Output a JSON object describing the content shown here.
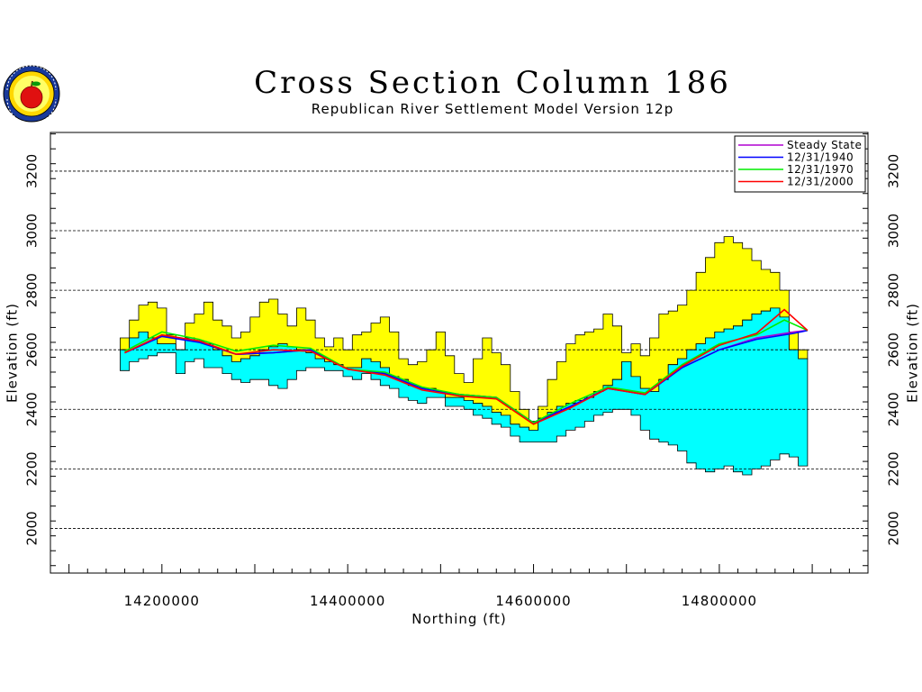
{
  "header": {
    "title": "Cross Section Column 186",
    "subtitle": "Republican River Settlement Model Version 12p"
  },
  "chart_data": {
    "type": "area",
    "title": "Cross Section Column 186",
    "subtitle": "Republican River Settlement Model Version 12p",
    "xlabel": "Northing (ft)",
    "ylabel": "Elevation (ft)",
    "xlim": [
      14080000,
      14960000
    ],
    "ylim": [
      1850,
      3330
    ],
    "xticks": [
      14200000,
      14400000,
      14600000,
      14800000
    ],
    "xtick_labels": [
      "14200000",
      "14400000",
      "14600000",
      "14800000"
    ],
    "yticks": [
      2000,
      2200,
      2400,
      2600,
      2800,
      3000,
      3200
    ],
    "ytick_labels": [
      "2000",
      "2200",
      "2400",
      "2600",
      "2800",
      "3000",
      "3200"
    ],
    "grid": "horizontal dashed",
    "legend_position": "top-right",
    "colors": {
      "layer_upper": "#ffff00",
      "layer_lower": "#00ffff",
      "steady_state": "#b000d0",
      "y1940": "#0000ff",
      "y1970": "#00ee00",
      "y2000": "#ff0000"
    },
    "layer_surface": {
      "x": [
        14160000,
        14170000,
        14180000,
        14190000,
        14200000,
        14210000,
        14220000,
        14230000,
        14240000,
        14250000,
        14260000,
        14270000,
        14280000,
        14290000,
        14300000,
        14310000,
        14320000,
        14330000,
        14340000,
        14350000,
        14360000,
        14370000,
        14380000,
        14390000,
        14400000,
        14410000,
        14420000,
        14430000,
        14440000,
        14450000,
        14460000,
        14470000,
        14480000,
        14490000,
        14500000,
        14510000,
        14520000,
        14530000,
        14540000,
        14550000,
        14560000,
        14570000,
        14580000,
        14590000,
        14600000,
        14610000,
        14620000,
        14630000,
        14640000,
        14650000,
        14660000,
        14670000,
        14680000,
        14690000,
        14700000,
        14710000,
        14720000,
        14730000,
        14740000,
        14750000,
        14760000,
        14770000,
        14780000,
        14790000,
        14800000,
        14810000,
        14820000,
        14830000,
        14840000,
        14850000,
        14860000,
        14870000,
        14880000,
        14890000
      ],
      "top": [
        2640,
        2700,
        2750,
        2760,
        2740,
        2650,
        2600,
        2690,
        2720,
        2760,
        2700,
        2680,
        2640,
        2660,
        2710,
        2760,
        2770,
        2720,
        2680,
        2740,
        2700,
        2640,
        2610,
        2640,
        2600,
        2650,
        2660,
        2690,
        2710,
        2660,
        2570,
        2550,
        2560,
        2600,
        2660,
        2580,
        2520,
        2490,
        2570,
        2640,
        2590,
        2550,
        2460,
        2400,
        2360,
        2410,
        2500,
        2560,
        2620,
        2650,
        2660,
        2670,
        2720,
        2680,
        2590,
        2620,
        2580,
        2640,
        2720,
        2730,
        2750,
        2800,
        2860,
        2910,
        2960,
        2980,
        2960,
        2940,
        2900,
        2870,
        2860,
        2800,
        2660,
        2600
      ],
      "cyan_top": [
        2600,
        2640,
        2660,
        2640,
        2620,
        2620,
        2600,
        2640,
        2630,
        2620,
        2600,
        2580,
        2560,
        2570,
        2580,
        2600,
        2610,
        2620,
        2610,
        2600,
        2590,
        2570,
        2560,
        2550,
        2540,
        2540,
        2570,
        2560,
        2540,
        2510,
        2500,
        2480,
        2470,
        2470,
        2460,
        2440,
        2440,
        2430,
        2420,
        2410,
        2390,
        2380,
        2350,
        2340,
        2330,
        2370,
        2390,
        2410,
        2420,
        2430,
        2440,
        2460,
        2480,
        2500,
        2560,
        2510,
        2470,
        2460,
        2500,
        2550,
        2570,
        2600,
        2620,
        2640,
        2660,
        2670,
        2680,
        2700,
        2720,
        2730,
        2740,
        2710,
        2600,
        2570
      ],
      "bottom": [
        2530,
        2560,
        2570,
        2580,
        2590,
        2590,
        2520,
        2560,
        2570,
        2540,
        2540,
        2520,
        2500,
        2490,
        2500,
        2500,
        2480,
        2470,
        2500,
        2530,
        2540,
        2540,
        2530,
        2530,
        2510,
        2500,
        2520,
        2500,
        2480,
        2470,
        2440,
        2430,
        2420,
        2440,
        2440,
        2410,
        2410,
        2400,
        2380,
        2370,
        2350,
        2340,
        2310,
        2290,
        2290,
        2290,
        2290,
        2310,
        2330,
        2340,
        2360,
        2380,
        2390,
        2400,
        2400,
        2380,
        2330,
        2300,
        2290,
        2280,
        2260,
        2220,
        2200,
        2190,
        2200,
        2210,
        2190,
        2180,
        2200,
        2210,
        2230,
        2250,
        2240,
        2210
      ]
    },
    "series": [
      {
        "name": "Steady State",
        "color": "#b000d0",
        "x": [
          14160000,
          14200000,
          14240000,
          14280000,
          14320000,
          14360000,
          14400000,
          14440000,
          14480000,
          14520000,
          14560000,
          14600000,
          14640000,
          14680000,
          14720000,
          14760000,
          14800000,
          14840000,
          14880000,
          14895000
        ],
        "y": [
          2590,
          2645,
          2630,
          2585,
          2590,
          2600,
          2535,
          2520,
          2470,
          2450,
          2440,
          2355,
          2410,
          2470,
          2450,
          2540,
          2600,
          2640,
          2660,
          2665
        ]
      },
      {
        "name": "12/31/1940",
        "color": "#0000ff",
        "x": [
          14160000,
          14200000,
          14240000,
          14280000,
          14320000,
          14360000,
          14400000,
          14440000,
          14480000,
          14520000,
          14560000,
          14600000,
          14640000,
          14680000,
          14720000,
          14760000,
          14800000,
          14840000,
          14880000,
          14895000
        ],
        "y": [
          2590,
          2645,
          2625,
          2585,
          2590,
          2600,
          2535,
          2520,
          2470,
          2450,
          2440,
          2355,
          2410,
          2470,
          2450,
          2540,
          2600,
          2635,
          2655,
          2665
        ]
      },
      {
        "name": "12/31/1970",
        "color": "#00ee00",
        "x": [
          14160000,
          14200000,
          14240000,
          14280000,
          14320000,
          14360000,
          14400000,
          14440000,
          14480000,
          14520000,
          14560000,
          14600000,
          14640000,
          14680000,
          14720000,
          14760000,
          14800000,
          14840000,
          14870000,
          14895000
        ],
        "y": [
          2595,
          2660,
          2635,
          2595,
          2615,
          2605,
          2535,
          2525,
          2475,
          2450,
          2440,
          2355,
          2420,
          2475,
          2455,
          2550,
          2620,
          2650,
          2700,
          2665
        ]
      },
      {
        "name": "12/31/2000",
        "color": "#ff0000",
        "x": [
          14160000,
          14200000,
          14240000,
          14280000,
          14320000,
          14360000,
          14400000,
          14440000,
          14480000,
          14520000,
          14560000,
          14600000,
          14640000,
          14680000,
          14720000,
          14760000,
          14800000,
          14840000,
          14870000,
          14895000
        ],
        "y": [
          2590,
          2650,
          2630,
          2585,
          2600,
          2595,
          2535,
          2515,
          2465,
          2445,
          2435,
          2350,
          2405,
          2470,
          2450,
          2545,
          2615,
          2655,
          2735,
          2665
        ]
      }
    ]
  }
}
